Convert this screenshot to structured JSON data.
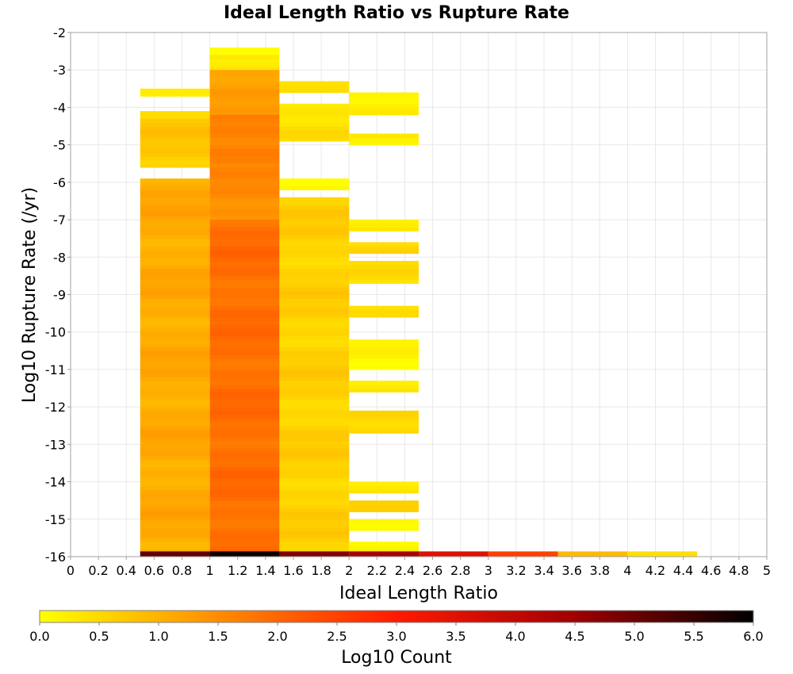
{
  "chart_data": {
    "type": "heatmap",
    "title": "Ideal Length Ratio vs Rupture Rate",
    "xlabel": "Ideal Length Ratio",
    "ylabel": "Log10 Rupture Rate (/yr)",
    "xlim": [
      0,
      5
    ],
    "ylim": [
      -16,
      -2
    ],
    "x_bin_width": 0.5,
    "y_bin_height": 0.1,
    "x_ticks": [
      "0",
      "0.2",
      "0.4",
      "0.6",
      "0.8",
      "1",
      "1.2",
      "1.4",
      "1.6",
      "1.8",
      "2",
      "2.2",
      "2.4",
      "2.6",
      "2.8",
      "3",
      "3.2",
      "3.4",
      "3.6",
      "3.8",
      "4",
      "4.2",
      "4.4",
      "4.6",
      "4.8",
      "5"
    ],
    "y_ticks": [
      "-2",
      "-3",
      "-4",
      "-5",
      "-6",
      "-7",
      "-8",
      "-9",
      "-10",
      "-11",
      "-12",
      "-13",
      "-14",
      "-15",
      "-16"
    ],
    "grid": true,
    "colorbar": {
      "label": "Log10 Count",
      "range": [
        0,
        6
      ],
      "ticks": [
        "0.0",
        "0.5",
        "1.0",
        "1.5",
        "2.0",
        "2.5",
        "3.0",
        "3.5",
        "4.0",
        "4.5",
        "5.0",
        "5.5",
        "6.0"
      ],
      "colors": [
        "#ffff00",
        "#ff8c00",
        "#ff1a00",
        "#a00000",
        "#000000"
      ]
    },
    "columns": [
      {
        "x": 0.5,
        "runs": [
          [
            -3.7,
            -3.5,
            0.3
          ],
          [
            -4.3,
            -4.1,
            0.4
          ],
          [
            -5.6,
            -4.3,
            0.7
          ],
          [
            -16,
            -5.9,
            1.1
          ]
        ]
      },
      {
        "x": 1.0,
        "runs": [
          [
            -2.6,
            -2.4,
            0.0
          ],
          [
            -3.0,
            -2.6,
            0.4
          ],
          [
            -4.2,
            -3.0,
            1.2
          ],
          [
            -5.5,
            -4.2,
            1.7
          ],
          [
            -7.0,
            -5.5,
            1.5
          ],
          [
            -16,
            -7.0,
            1.9
          ]
        ]
      },
      {
        "x": 1.5,
        "runs": [
          [
            -3.6,
            -3.3,
            0.4
          ],
          [
            -4.9,
            -3.9,
            0.4
          ],
          [
            -6.2,
            -5.9,
            0.2
          ],
          [
            -16,
            -6.4,
            0.6
          ]
        ]
      },
      {
        "x": 2.0,
        "runs": [
          [
            -4.2,
            -3.6,
            0.1
          ],
          [
            -5.0,
            -4.7,
            0.3
          ],
          [
            -7.3,
            -7.0,
            0.4
          ],
          [
            -7.9,
            -7.6,
            0.5
          ],
          [
            -8.7,
            -8.1,
            0.4
          ],
          [
            -9.6,
            -9.3,
            0.5
          ],
          [
            -11.0,
            -10.2,
            0.1
          ],
          [
            -11.6,
            -11.3,
            0.4
          ],
          [
            -12.7,
            -12.1,
            0.4
          ],
          [
            -14.3,
            -14.0,
            0.2
          ],
          [
            -14.8,
            -14.5,
            0.6
          ],
          [
            -15.3,
            -15.0,
            0.2
          ],
          [
            -15.9,
            -15.6,
            0.2
          ]
        ]
      }
    ],
    "bottom_row": {
      "y": -16,
      "cells": [
        {
          "x": 0.5,
          "value": 5.1
        },
        {
          "x": 1.0,
          "value": 5.9
        },
        {
          "x": 1.5,
          "value": 4.8
        },
        {
          "x": 2.0,
          "value": 4.4
        },
        {
          "x": 2.5,
          "value": 3.5
        },
        {
          "x": 3.0,
          "value": 2.5
        },
        {
          "x": 3.5,
          "value": 0.9
        },
        {
          "x": 4.0,
          "value": 0.4
        }
      ]
    }
  }
}
